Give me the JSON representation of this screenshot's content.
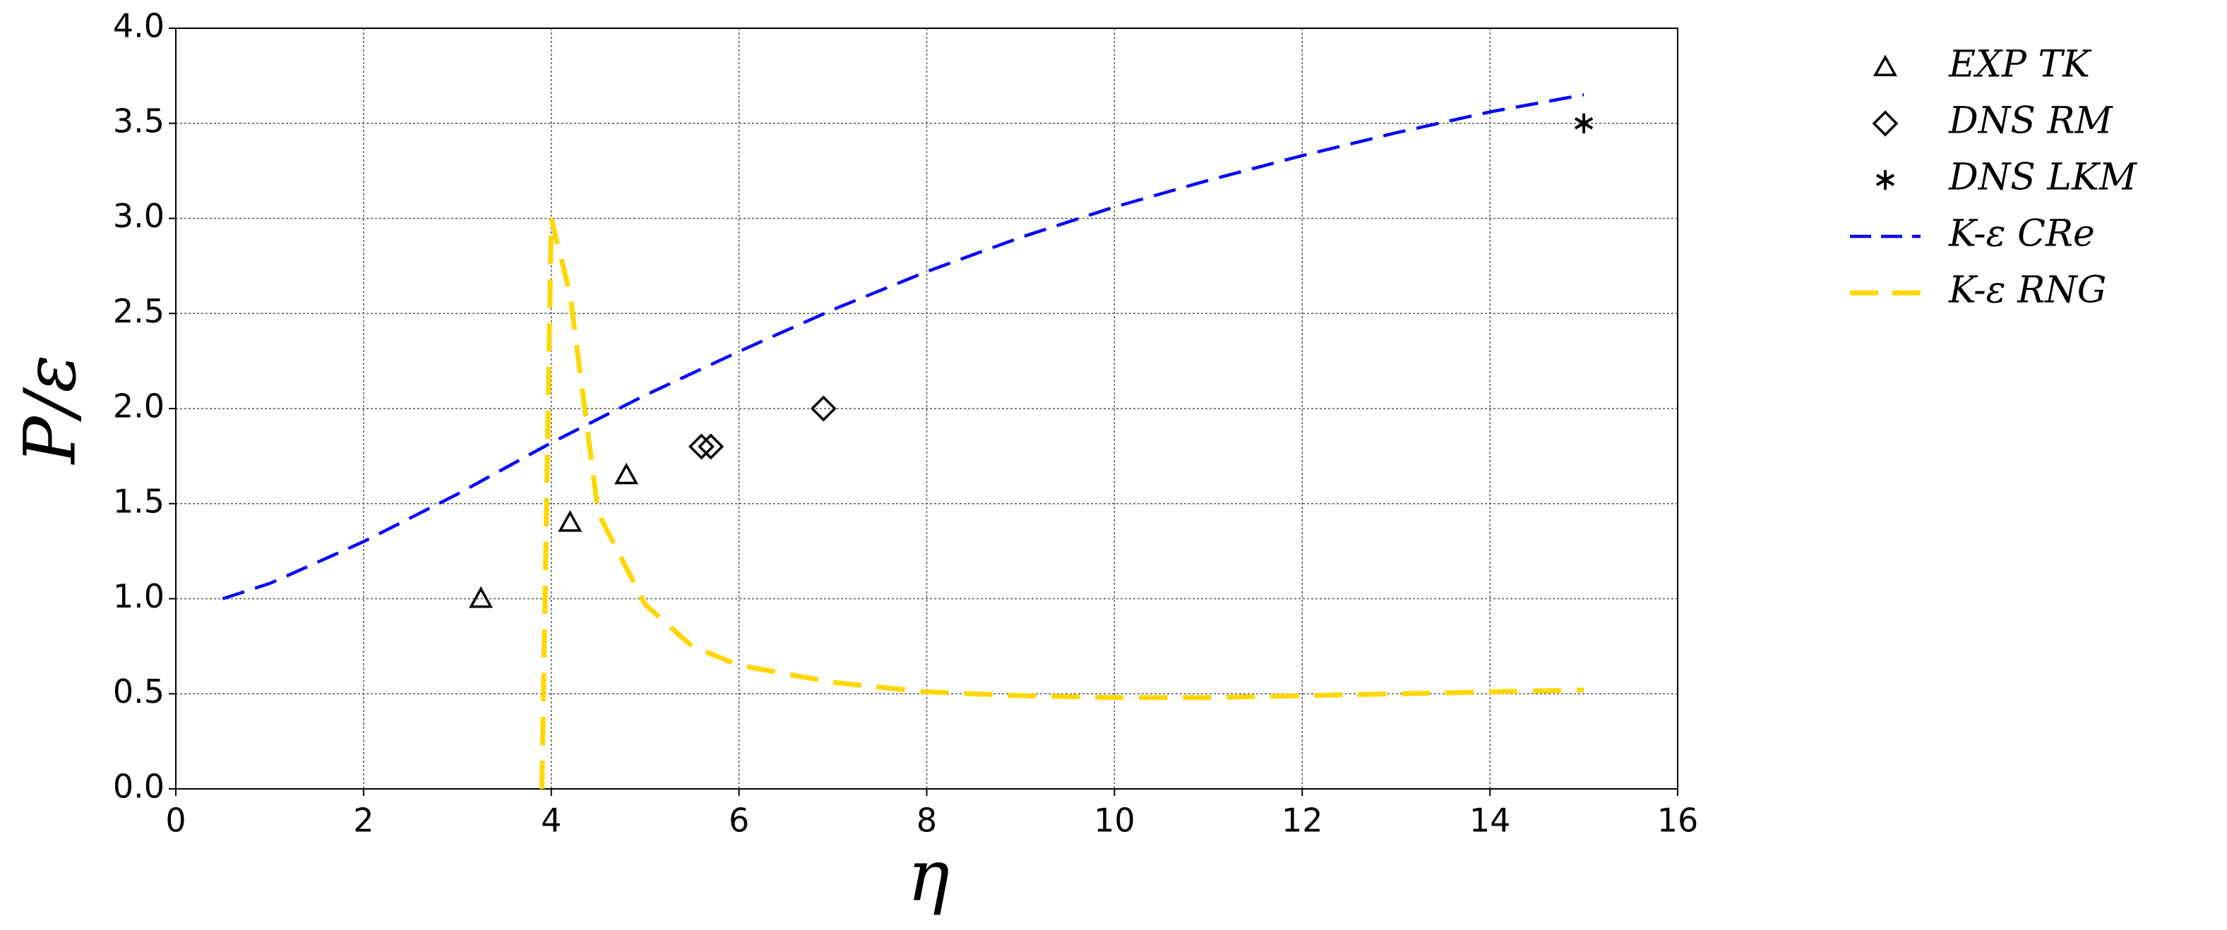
{
  "chart_data": {
    "type": "line",
    "xlabel": "η",
    "ylabel": "P/ε",
    "xlim": [
      0,
      16
    ],
    "xticks": [
      0,
      2,
      4,
      6,
      8,
      10,
      12,
      14,
      16
    ],
    "ylim": [
      0,
      4
    ],
    "yticks": [
      {
        "value": 0,
        "label": "0.0"
      },
      {
        "value": 0.5,
        "label": "0.5"
      },
      {
        "value": 1,
        "label": "1.0"
      },
      {
        "value": 1.5,
        "label": "1.5"
      },
      {
        "value": 2,
        "label": "2.0"
      },
      {
        "value": 2.5,
        "label": "2.5"
      },
      {
        "value": 3,
        "label": "3.0"
      },
      {
        "value": 3.5,
        "label": "3.5"
      },
      {
        "value": 4,
        "label": "4.0"
      }
    ],
    "grid": true,
    "series": [
      {
        "name": "EXP TK",
        "color": "#000000",
        "marker": "triangle",
        "x": [
          3.25,
          4.2,
          4.8
        ],
        "values": [
          1.0,
          1.4,
          1.65
        ]
      },
      {
        "name": "DNS RM",
        "color": "#000000",
        "marker": "diamond",
        "x": [
          5.6,
          5.7,
          6.9
        ],
        "values": [
          1.8,
          1.8,
          2.0
        ]
      },
      {
        "name": "DNS LKM",
        "color": "#000000",
        "marker": "asterisk",
        "x": [
          15
        ],
        "values": [
          3.5
        ]
      },
      {
        "name": "K-ε CRe",
        "color": "#0000ff",
        "marker": "line",
        "x": [
          0.5,
          1,
          2,
          3,
          4,
          5,
          6,
          7,
          8,
          9,
          10,
          11,
          12,
          13,
          14,
          15
        ],
        "values": [
          1.0,
          1.08,
          1.3,
          1.55,
          1.82,
          2.07,
          2.3,
          2.52,
          2.72,
          2.9,
          3.06,
          3.2,
          3.33,
          3.45,
          3.56,
          3.65
        ]
      },
      {
        "name": "K-ε RNG",
        "color": "#ffd700",
        "marker": "line",
        "x": [
          3.9,
          4.0,
          4.2,
          4.5,
          5,
          5.5,
          6,
          7,
          8,
          9,
          10,
          11,
          12,
          13,
          14,
          15
        ],
        "values": [
          0,
          3.0,
          2.6,
          1.45,
          0.97,
          0.75,
          0.65,
          0.56,
          0.51,
          0.49,
          0.48,
          0.48,
          0.49,
          0.5,
          0.51,
          0.52
        ]
      }
    ]
  }
}
